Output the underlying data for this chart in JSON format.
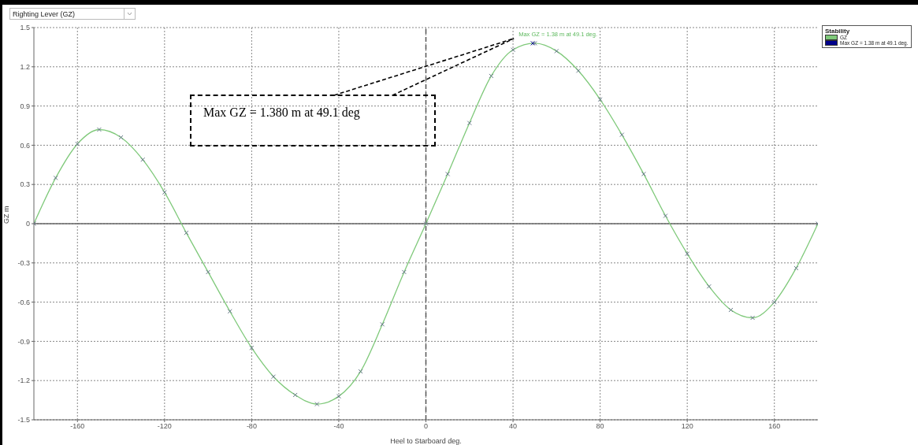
{
  "chart_data": {
    "type": "line",
    "title": "Righting Lever (GZ)",
    "xlabel": "Heel to Starboard deg.",
    "ylabel": "GZ m",
    "legend_title": "Stability",
    "x": [
      -180,
      -170,
      -160,
      -150,
      -140,
      -130,
      -120,
      -110,
      -100,
      -90,
      -80,
      -70,
      -60,
      -50,
      -40,
      -30,
      -20,
      -10,
      0,
      10,
      20,
      30,
      40,
      50,
      60,
      70,
      80,
      90,
      100,
      110,
      120,
      130,
      140,
      150,
      160,
      170,
      180
    ],
    "series": [
      {
        "name": "GZ",
        "color": "#7fc97a",
        "values": [
          0,
          0.35,
          0.61,
          0.72,
          0.66,
          0.49,
          0.24,
          -0.07,
          -0.37,
          -0.67,
          -0.95,
          -1.17,
          -1.31,
          -1.38,
          -1.32,
          -1.13,
          -0.77,
          -0.37,
          0,
          0.38,
          0.77,
          1.13,
          1.33,
          1.38,
          1.32,
          1.17,
          0.95,
          0.68,
          0.38,
          0.06,
          -0.23,
          -0.48,
          -0.66,
          -0.72,
          -0.6,
          -0.34,
          0
        ]
      },
      {
        "name": "Max GZ = 1.38 m at 49.1 deg.",
        "type": "scatter",
        "color": "#00008b",
        "x": [
          49.1
        ],
        "values": [
          1.38
        ]
      }
    ],
    "xlim": [
      -180,
      180
    ],
    "xticks": [
      -160,
      -120,
      -80,
      -40,
      0,
      40,
      80,
      120,
      160
    ],
    "ylim": [
      -1.5,
      1.5
    ],
    "yticks": [
      -1.5,
      -1.2,
      -0.9,
      -0.6,
      -0.3,
      0,
      0.3,
      0.6,
      0.9,
      1.2,
      1.5
    ],
    "ref_lines": [
      {
        "axis": "x",
        "value": 0,
        "line_style": "dashed",
        "color": "#555555"
      },
      {
        "axis": "y",
        "value": 0,
        "line_style": "solid",
        "color": "#666666"
      }
    ],
    "annotations": [
      {
        "text": "Max GZ = 1.38 m at 49.1 deg.",
        "x": 49.1,
        "y": 1.38
      },
      "Max GZ = 1.380 m at 49.1 deg"
    ],
    "grid": true,
    "legend": "top right",
    "marker": "cross",
    "line_style": "solid"
  }
}
